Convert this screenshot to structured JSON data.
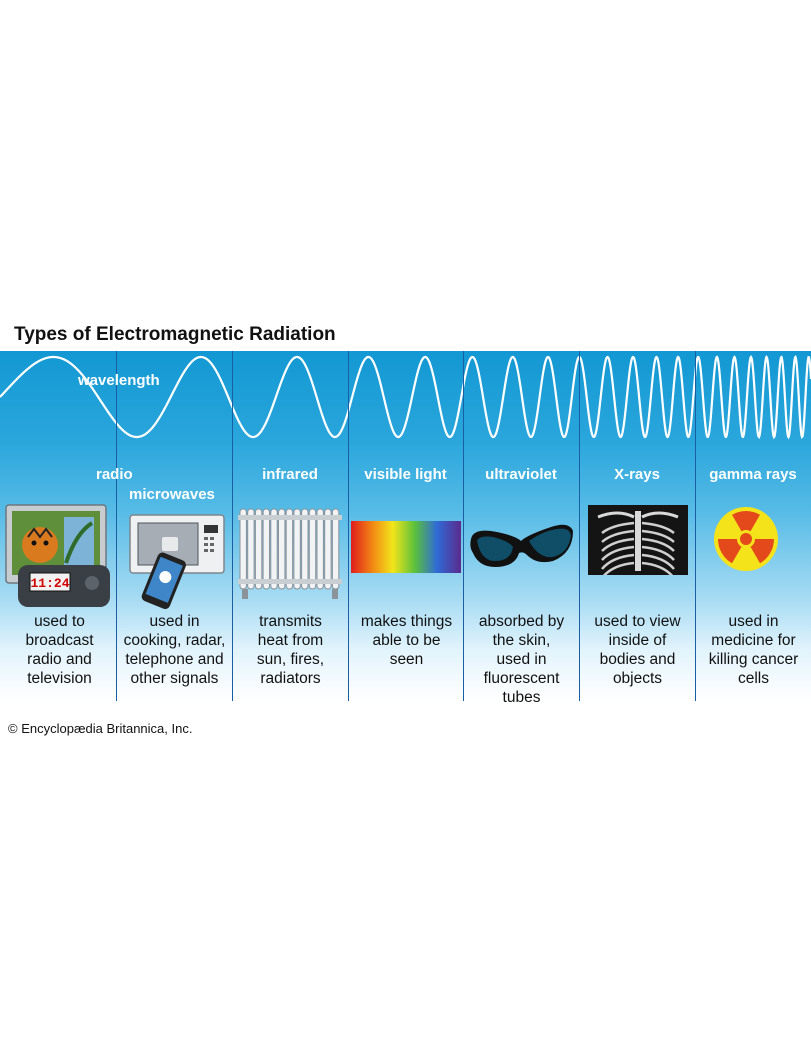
{
  "title": "Types of Electromagnetic Radiation",
  "wavelength_label": "wavelength",
  "colors": {
    "band_top": "#1398d3",
    "divider": "#1a5ea3",
    "wave": "#ffffff"
  },
  "types": [
    {
      "name": "radio",
      "description": "used to broadcast radio and television",
      "icon": "tv-radio-icon",
      "desc_lines": [
        "used to",
        "broadcast",
        "radio and",
        "television"
      ]
    },
    {
      "name": "microwaves",
      "description": "used in cooking, radar, telephone and other signals",
      "icon": "microwave-phone-icon",
      "desc_lines": [
        "used in",
        "cooking, radar,",
        "telephone and",
        "other signals"
      ]
    },
    {
      "name": "infrared",
      "description": "transmits heat from sun, fires, radiators",
      "icon": "radiator-icon",
      "desc_lines": [
        "transmits",
        "heat from",
        "sun, fires,",
        "radiators"
      ]
    },
    {
      "name": "visible light",
      "description": "makes things able to be seen",
      "icon": "spectrum-icon",
      "desc_lines": [
        "makes things",
        "able to be",
        "seen"
      ]
    },
    {
      "name": "ultraviolet",
      "description": "absorbed by the skin, used in fluorescent tubes",
      "icon": "sunglasses-icon",
      "desc_lines": [
        "absorbed by",
        "the skin,",
        "used in",
        "fluorescent",
        "tubes"
      ]
    },
    {
      "name": "X-rays",
      "description": "used to view inside of bodies and objects",
      "icon": "xray-chest-icon",
      "desc_lines": [
        "used to view",
        "inside of",
        "bodies and",
        "objects"
      ]
    },
    {
      "name": "gamma rays",
      "description": "used in medicine for killing cancer cells",
      "icon": "radiation-icon",
      "desc_lines": [
        "used in",
        "medicine for",
        "killing cancer",
        "cells"
      ]
    }
  ],
  "credit": "© Encyclopædia Britannica, Inc."
}
